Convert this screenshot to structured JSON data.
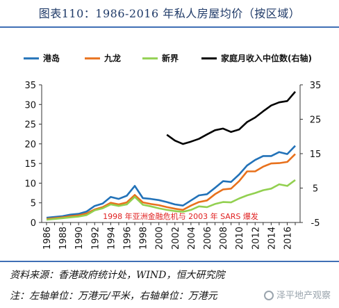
{
  "title": "图表110：1986-2016 年私人房屋均价（按区域）",
  "source": "资料来源：香港政府统计处，WIND，恒大研究院",
  "note": "注：左轴单位：万港元/平米，右轴单位：万港元",
  "watermark": "泽平地产观察",
  "chart_data": {
    "type": "line",
    "x": [
      1986,
      1987,
      1988,
      1989,
      1990,
      1991,
      1992,
      1993,
      1994,
      1995,
      1996,
      1997,
      1998,
      1999,
      2000,
      2001,
      2002,
      2003,
      2004,
      2005,
      2006,
      2007,
      2008,
      2009,
      2010,
      2011,
      2012,
      2013,
      2014,
      2015,
      2016,
      2017
    ],
    "x_tick_labels": [
      "1986",
      "1988",
      "1990",
      "1992",
      "1994",
      "1996",
      "1998",
      "2000",
      "2002",
      "2004",
      "2006",
      "2008",
      "2010",
      "2012",
      "2014",
      "2016"
    ],
    "y_left_ticks": [
      "0",
      "5",
      "10",
      "15",
      "20",
      "25",
      "30",
      "35"
    ],
    "y_right_ticks": [
      "-5",
      "5",
      "15",
      "25",
      "35"
    ],
    "ylim_left": [
      0,
      35
    ],
    "ylim_right": [
      -5,
      35
    ],
    "series": [
      {
        "name": "港岛",
        "axis": "left",
        "color": "#2272b8",
        "values": [
          1.2,
          1.4,
          1.6,
          2.0,
          2.2,
          2.8,
          4.2,
          4.8,
          6.5,
          6.0,
          6.8,
          9.3,
          6.2,
          6.0,
          5.7,
          5.2,
          4.6,
          4.3,
          5.6,
          6.9,
          7.2,
          8.8,
          10.5,
          10.3,
          12.2,
          14.5,
          15.9,
          16.9,
          16.9,
          17.9,
          17.4,
          19.5
        ]
      },
      {
        "name": "九龙",
        "axis": "left",
        "color": "#e8711c",
        "values": [
          0.9,
          1.1,
          1.3,
          1.6,
          1.8,
          2.3,
          3.3,
          3.9,
          5.0,
          4.6,
          5.1,
          7.0,
          5.1,
          4.7,
          4.4,
          3.9,
          3.5,
          3.2,
          4.3,
          5.2,
          5.6,
          7.2,
          8.4,
          8.6,
          10.5,
          13.0,
          13.0,
          14.2,
          15.0,
          15.1,
          15.4,
          17.4
        ]
      },
      {
        "name": "新界",
        "axis": "left",
        "color": "#92d050",
        "values": [
          0.7,
          0.9,
          1.1,
          1.3,
          1.5,
          1.9,
          3.1,
          3.6,
          4.6,
          4.2,
          4.6,
          6.5,
          4.5,
          4.1,
          3.6,
          3.2,
          2.9,
          2.7,
          3.2,
          4.1,
          3.9,
          4.7,
          5.2,
          5.1,
          6.1,
          6.9,
          7.5,
          8.2,
          8.6,
          9.7,
          9.3,
          10.8
        ]
      },
      {
        "name": "家庭月收入中位数(右轴)",
        "axis": "right",
        "color": "#000000",
        "values": [
          null,
          null,
          null,
          null,
          null,
          null,
          null,
          null,
          null,
          null,
          null,
          null,
          null,
          null,
          null,
          20.5,
          18.8,
          17.8,
          18.5,
          19.3,
          20.6,
          21.8,
          22.3,
          21.3,
          22.0,
          24.2,
          25.5,
          27.3,
          29.0,
          29.9,
          30.3,
          33.0
        ]
      }
    ],
    "legend_position": "top",
    "annotation": "1998 年亚洲金融危机与 2003 年 SARS 爆发",
    "grid": false
  }
}
